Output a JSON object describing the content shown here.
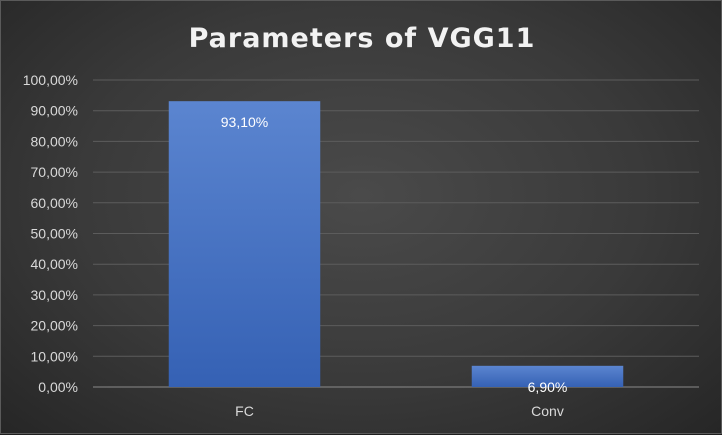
{
  "chart_data": {
    "type": "bar",
    "title": "Parameters of VGG11",
    "categories": [
      "FC",
      "Conv"
    ],
    "values": [
      93.1,
      6.9
    ],
    "data_labels": [
      "93,10%",
      "6,90%"
    ],
    "y_tick_values": [
      0,
      10,
      20,
      30,
      40,
      50,
      60,
      70,
      80,
      90,
      100
    ],
    "y_tick_labels": [
      "0,00%",
      "10,00%",
      "20,00%",
      "30,00%",
      "40,00%",
      "50,00%",
      "60,00%",
      "70,00%",
      "80,00%",
      "90,00%",
      "100,00%"
    ],
    "ylim": [
      0,
      100
    ],
    "xlabel": "",
    "ylabel": "",
    "grid": true,
    "legend": "none",
    "colors": {
      "bar": "#4472c4",
      "gridline": "#5c5c5c",
      "background": "#404040"
    }
  }
}
